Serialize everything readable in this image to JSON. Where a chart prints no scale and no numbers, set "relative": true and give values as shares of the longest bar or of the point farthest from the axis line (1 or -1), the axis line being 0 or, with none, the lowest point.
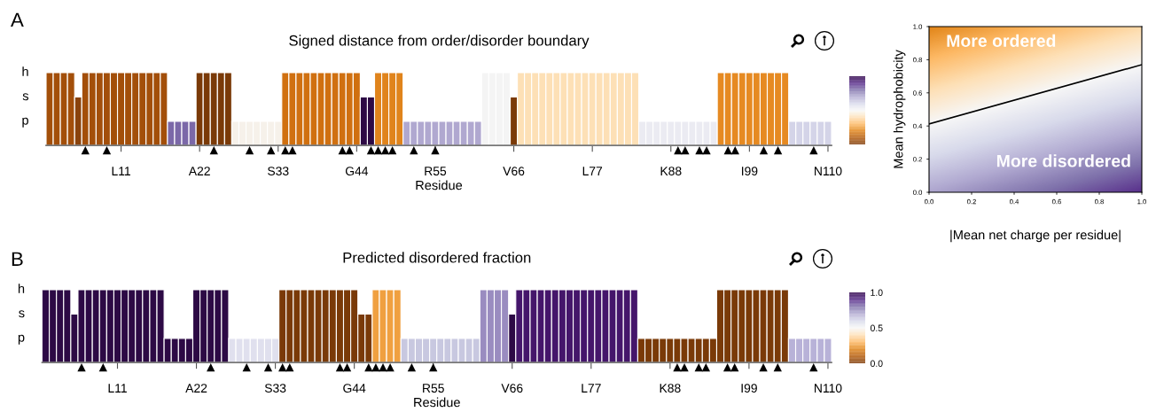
{
  "chart_data": [
    {
      "type": "bar",
      "relative": true,
      "title": "Signed distance from order/disorder boundary",
      "xlabel": "Residue",
      "annotations": [
        "A",
        "h",
        "s",
        "p"
      ],
      "categories": [
        null,
        null,
        null,
        null,
        null,
        null,
        null,
        null,
        null,
        null,
        "L11",
        null,
        null,
        null,
        null,
        null,
        null,
        null,
        null,
        null,
        null,
        "A22",
        null,
        null,
        null,
        null,
        null,
        null,
        null,
        null,
        null,
        null,
        "S33",
        null,
        null,
        null,
        null,
        null,
        null,
        null,
        null,
        null,
        null,
        "G44",
        null,
        null,
        null,
        null,
        null,
        null,
        null,
        null,
        null,
        null,
        "R55",
        null,
        null,
        null,
        null,
        null,
        null,
        null,
        null,
        null,
        null,
        "V66",
        null,
        null,
        null,
        null,
        null,
        null,
        null,
        null,
        null,
        null,
        "L77",
        null,
        null,
        null,
        null,
        null,
        null,
        null,
        null,
        null,
        null,
        "K88",
        null,
        null,
        null,
        null,
        null,
        null,
        null,
        null,
        null,
        null,
        "I99",
        null,
        null,
        null,
        null,
        null,
        null,
        null,
        null,
        null,
        null,
        "N110"
      ],
      "series": [
        {
          "type": "bar",
          "values": [
            1,
            1,
            1,
            1,
            0.667,
            1,
            1,
            1,
            1,
            1,
            1,
            1,
            1,
            1,
            1,
            1,
            1,
            0.333,
            0.333,
            0.333,
            0.333,
            1,
            1,
            1,
            1,
            1,
            0.333,
            0.333,
            0.333,
            0.333,
            0.333,
            0.333,
            0.333,
            1,
            1,
            1,
            1,
            1,
            1,
            1,
            1,
            1,
            1,
            1,
            0.667,
            0.667,
            1,
            1,
            1,
            1,
            0.333,
            0.333,
            0.333,
            0.333,
            0.333,
            0.333,
            0.333,
            0.333,
            0.333,
            0.333,
            0.333,
            1,
            1,
            1,
            1,
            0.667,
            1,
            1,
            1,
            1,
            1,
            1,
            1,
            1,
            1,
            1,
            1,
            1,
            1,
            1,
            1,
            1,
            1,
            0.333,
            0.333,
            0.333,
            0.333,
            0.333,
            0.333,
            0.333,
            0.333,
            0.333,
            0.333,
            0.333,
            1,
            1,
            1,
            1,
            1,
            1,
            1,
            1,
            1,
            1,
            0.333,
            0.333,
            0.333,
            0.333,
            0.333,
            0.333
          ],
          "colors": [
            "#a34f0a",
            "#a34f0a",
            "#a34f0a",
            "#a34f0a",
            "#8a430c",
            "#a34f0a",
            "#a34f0a",
            "#a34f0a",
            "#a34f0a",
            "#a34f0a",
            "#a34f0a",
            "#a34f0a",
            "#a34f0a",
            "#a34f0a",
            "#a34f0a",
            "#a34f0a",
            "#a34f0a",
            "#7b68a8",
            "#7b68a8",
            "#7b68a8",
            "#7b68a8",
            "#7a3a08",
            "#7a3a08",
            "#7a3a08",
            "#7a3a08",
            "#7a3a08",
            "#f6f1ea",
            "#f6f1ea",
            "#f6f1ea",
            "#f6f1ea",
            "#f6f1ea",
            "#f6f1ea",
            "#f6f1ea",
            "#d07010",
            "#d07010",
            "#d07010",
            "#d07010",
            "#d07010",
            "#d07010",
            "#d07010",
            "#d07010",
            "#d07010",
            "#d07010",
            "#d07010",
            "#2d0a45",
            "#2d0a45",
            "#e0841c",
            "#e0841c",
            "#e0841c",
            "#e0841c",
            "#b0a8d0",
            "#b0a8d0",
            "#b0a8d0",
            "#b0a8d0",
            "#b0a8d0",
            "#b0a8d0",
            "#b0a8d0",
            "#b0a8d0",
            "#b0a8d0",
            "#b0a8d0",
            "#b0a8d0",
            "#f4f4f4",
            "#f4f4f4",
            "#f4f4f4",
            "#f4f4f4",
            "#7a3a08",
            "#fde0b6",
            "#fde0b6",
            "#fde0b6",
            "#fde0b6",
            "#fde0b6",
            "#fde0b6",
            "#fde0b6",
            "#fde0b6",
            "#fde0b6",
            "#fde0b6",
            "#fde0b6",
            "#fde0b6",
            "#fde0b6",
            "#fde0b6",
            "#fde0b6",
            "#fde0b6",
            "#fde0b6",
            "#ebebf2",
            "#ebebf2",
            "#ebebf2",
            "#ebebf2",
            "#ebebf2",
            "#ebebf2",
            "#ebebf2",
            "#ebebf2",
            "#ebebf2",
            "#ebebf2",
            "#ebebf2",
            "#e68a22",
            "#e68a22",
            "#e68a22",
            "#e68a22",
            "#e68a22",
            "#e68a22",
            "#e68a22",
            "#e68a22",
            "#e68a22",
            "#e68a22",
            "#d4d4e8",
            "#d4d4e8",
            "#d4d4e8",
            "#d4d4e8",
            "#d4d4e8",
            "#d4d4e8"
          ]
        },
        {
          "type": "scatter",
          "color": "#000000",
          "marker": "triangle",
          "values": [
            null,
            null,
            null,
            null,
            null,
            -0.067,
            null,
            null,
            -0.067,
            null,
            null,
            null,
            null,
            null,
            null,
            null,
            null,
            null,
            null,
            null,
            null,
            null,
            null,
            -0.067,
            null,
            null,
            null,
            null,
            -0.067,
            null,
            null,
            -0.067,
            null,
            -0.067,
            -0.067,
            null,
            null,
            null,
            null,
            null,
            null,
            -0.067,
            -0.067,
            null,
            null,
            -0.067,
            -0.067,
            -0.067,
            -0.067,
            null,
            null,
            -0.067,
            null,
            null,
            -0.067,
            null,
            null,
            null,
            null,
            null,
            null,
            null,
            null,
            null,
            null,
            null,
            null,
            null,
            null,
            null,
            null,
            null,
            null,
            null,
            null,
            null,
            null,
            null,
            null,
            null,
            null,
            null,
            null,
            null,
            null,
            null,
            null,
            null,
            -0.067,
            -0.067,
            null,
            -0.067,
            -0.067,
            null,
            null,
            -0.067,
            -0.067,
            null,
            null,
            null,
            -0.067,
            null,
            -0.067,
            null,
            null,
            null,
            null,
            -0.067,
            null,
            null
          ]
        }
      ]
    },
    {
      "type": "line",
      "xlabel": "|Mean net charge per residue|",
      "ylabel": "Mean hydrophobicity",
      "annotations": [
        "More ordered",
        "More disordered"
      ],
      "x": [
        0,
        1
      ],
      "series": [
        {
          "color": "#000000",
          "values": [
            0.413,
            0.77
          ]
        }
      ],
      "xlim": [
        0,
        1
      ],
      "ylim": [
        0,
        1
      ],
      "xticks": [
        {
          "value": 0,
          "label": "0.0"
        },
        {
          "value": 0.2,
          "label": "0.2"
        },
        {
          "value": 0.4,
          "label": "0.4"
        },
        {
          "value": 0.6,
          "label": "0.6"
        },
        {
          "value": 0.8,
          "label": "0.8"
        },
        {
          "value": 1,
          "label": "1.0"
        }
      ],
      "yticks": [
        {
          "value": 0,
          "label": "0.0"
        },
        {
          "value": 0.2,
          "label": "0.2"
        },
        {
          "value": 0.4,
          "label": "0.4"
        },
        {
          "value": 0.6,
          "label": "0.6"
        },
        {
          "value": 0.8,
          "label": "0.8"
        },
        {
          "value": 1,
          "label": "1.0"
        }
      ]
    },
    {
      "type": "bar",
      "relative": true,
      "title": "Predicted disordered fraction",
      "xlabel": "Residue",
      "annotations": [
        "B",
        "h",
        "s",
        "p"
      ],
      "categories": [
        null,
        null,
        null,
        null,
        null,
        null,
        null,
        null,
        null,
        null,
        "L11",
        null,
        null,
        null,
        null,
        null,
        null,
        null,
        null,
        null,
        null,
        "A22",
        null,
        null,
        null,
        null,
        null,
        null,
        null,
        null,
        null,
        null,
        "S33",
        null,
        null,
        null,
        null,
        null,
        null,
        null,
        null,
        null,
        null,
        "G44",
        null,
        null,
        null,
        null,
        null,
        null,
        null,
        null,
        null,
        null,
        "R55",
        null,
        null,
        null,
        null,
        null,
        null,
        null,
        null,
        null,
        null,
        "V66",
        null,
        null,
        null,
        null,
        null,
        null,
        null,
        null,
        null,
        null,
        "L77",
        null,
        null,
        null,
        null,
        null,
        null,
        null,
        null,
        null,
        null,
        "K88",
        null,
        null,
        null,
        null,
        null,
        null,
        null,
        null,
        null,
        null,
        "I99",
        null,
        null,
        null,
        null,
        null,
        null,
        null,
        null,
        null,
        null,
        "N110"
      ],
      "series": [
        {
          "type": "bar",
          "values": [
            1,
            1,
            1,
            1,
            0.667,
            1,
            1,
            1,
            1,
            1,
            1,
            1,
            1,
            1,
            1,
            1,
            1,
            0.333,
            0.333,
            0.333,
            0.333,
            1,
            1,
            1,
            1,
            1,
            0.333,
            0.333,
            0.333,
            0.333,
            0.333,
            0.333,
            0.333,
            1,
            1,
            1,
            1,
            1,
            1,
            1,
            1,
            1,
            1,
            1,
            0.667,
            0.667,
            1,
            1,
            1,
            1,
            0.333,
            0.333,
            0.333,
            0.333,
            0.333,
            0.333,
            0.333,
            0.333,
            0.333,
            0.333,
            0.333,
            1,
            1,
            1,
            1,
            0.667,
            1,
            1,
            1,
            1,
            1,
            1,
            1,
            1,
            1,
            1,
            1,
            1,
            1,
            1,
            1,
            1,
            1,
            0.333,
            0.333,
            0.333,
            0.333,
            0.333,
            0.333,
            0.333,
            0.333,
            0.333,
            0.333,
            0.333,
            1,
            1,
            1,
            1,
            1,
            1,
            1,
            1,
            1,
            1,
            0.333,
            0.333,
            0.333,
            0.333,
            0.333,
            0.333
          ],
          "colors": [
            "#2d0a45",
            "#2d0a45",
            "#2d0a45",
            "#2d0a45",
            "#2d0a45",
            "#2d0a45",
            "#2d0a45",
            "#2d0a45",
            "#2d0a45",
            "#2d0a45",
            "#2d0a45",
            "#2d0a45",
            "#2d0a45",
            "#2d0a45",
            "#2d0a45",
            "#2d0a45",
            "#2d0a45",
            "#2d0a45",
            "#2d0a45",
            "#2d0a45",
            "#2d0a45",
            "#2d0a45",
            "#2d0a45",
            "#2d0a45",
            "#2d0a45",
            "#2d0a45",
            "#e0e0ee",
            "#e0e0ee",
            "#e0e0ee",
            "#e0e0ee",
            "#e0e0ee",
            "#e0e0ee",
            "#e0e0ee",
            "#7a3a08",
            "#7a3a08",
            "#7a3a08",
            "#7a3a08",
            "#7a3a08",
            "#7a3a08",
            "#7a3a08",
            "#7a3a08",
            "#7a3a08",
            "#7a3a08",
            "#7a3a08",
            "#7a3a08",
            "#7a3a08",
            "#f0a040",
            "#f0a040",
            "#f0a040",
            "#f0a040",
            "#c8c8e0",
            "#c8c8e0",
            "#c8c8e0",
            "#c8c8e0",
            "#c8c8e0",
            "#c8c8e0",
            "#c8c8e0",
            "#c8c8e0",
            "#c8c8e0",
            "#c8c8e0",
            "#c8c8e0",
            "#9a8cc0",
            "#9a8cc0",
            "#9a8cc0",
            "#9a8cc0",
            "#2d0a45",
            "#45166b",
            "#45166b",
            "#45166b",
            "#45166b",
            "#45166b",
            "#45166b",
            "#45166b",
            "#45166b",
            "#45166b",
            "#45166b",
            "#45166b",
            "#45166b",
            "#45166b",
            "#45166b",
            "#45166b",
            "#45166b",
            "#45166b",
            "#7a3a08",
            "#7a3a08",
            "#7a3a08",
            "#7a3a08",
            "#7a3a08",
            "#7a3a08",
            "#7a3a08",
            "#7a3a08",
            "#7a3a08",
            "#7a3a08",
            "#7a3a08",
            "#7a3a08",
            "#7a3a08",
            "#7a3a08",
            "#7a3a08",
            "#7a3a08",
            "#7a3a08",
            "#7a3a08",
            "#7a3a08",
            "#7a3a08",
            "#7a3a08",
            "#b8b2d8",
            "#b8b2d8",
            "#b8b2d8",
            "#b8b2d8",
            "#b8b2d8",
            "#b8b2d8"
          ]
        },
        {
          "type": "scatter",
          "color": "#000000",
          "marker": "triangle",
          "values": [
            null,
            null,
            null,
            null,
            null,
            -0.067,
            null,
            null,
            -0.067,
            null,
            null,
            null,
            null,
            null,
            null,
            null,
            null,
            null,
            null,
            null,
            null,
            null,
            null,
            -0.067,
            null,
            null,
            null,
            null,
            -0.067,
            null,
            null,
            -0.067,
            null,
            -0.067,
            -0.067,
            null,
            null,
            null,
            null,
            null,
            null,
            -0.067,
            -0.067,
            null,
            null,
            -0.067,
            -0.067,
            -0.067,
            -0.067,
            null,
            null,
            -0.067,
            null,
            null,
            -0.067,
            null,
            null,
            null,
            null,
            null,
            null,
            null,
            null,
            null,
            null,
            null,
            null,
            null,
            null,
            null,
            null,
            null,
            null,
            null,
            null,
            null,
            null,
            null,
            null,
            null,
            null,
            null,
            null,
            null,
            null,
            null,
            null,
            null,
            -0.067,
            -0.067,
            null,
            -0.067,
            -0.067,
            null,
            null,
            -0.067,
            -0.067,
            null,
            null,
            null,
            -0.067,
            null,
            -0.067,
            null,
            null,
            null,
            null,
            -0.067,
            null,
            null
          ]
        }
      ],
      "clim": [
        0,
        1
      ],
      "cticks": [
        {
          "value": 0,
          "label": "0.0"
        },
        {
          "value": 0.5,
          "label": "0.5"
        },
        {
          "value": 1,
          "label": "1.0"
        }
      ]
    }
  ]
}
